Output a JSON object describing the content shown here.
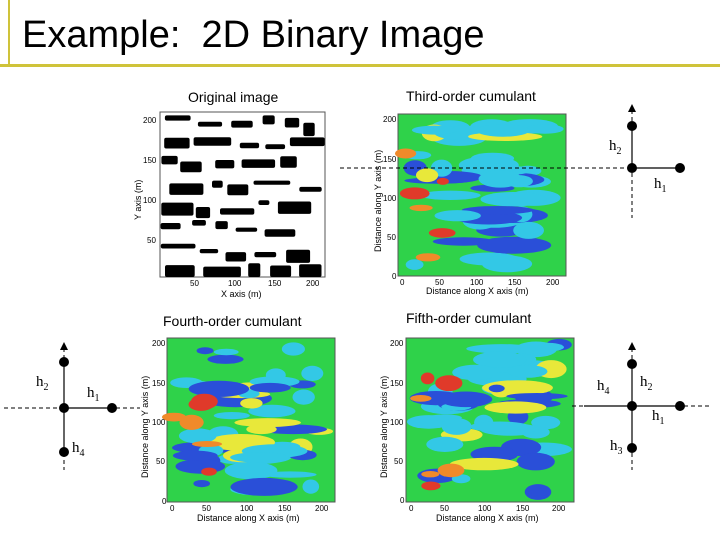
{
  "slide": {
    "title": "Example:  2D Binary Image"
  },
  "panels": {
    "original": {
      "caption": "Original image",
      "xlabel": "X axis (m)",
      "ylabel": "Y axis (m)",
      "xticks": [
        "50",
        "100",
        "150",
        "200"
      ],
      "yticks": [
        "200",
        "150",
        "100",
        "50"
      ]
    },
    "third": {
      "caption": "Third-order cumulant",
      "xlabel": "Distance along X axis (m)",
      "ylabel": "Distance along Y axis (m)",
      "xticks": [
        "0",
        "50",
        "100",
        "150",
        "200"
      ],
      "yticks": [
        "200",
        "150",
        "100",
        "50",
        "0"
      ]
    },
    "fourth": {
      "caption": "Fourth-order cumulant",
      "xlabel": "Distance along X axis (m)",
      "ylabel": "Distance along Y axis (m)",
      "xticks": [
        "0",
        "50",
        "100",
        "150",
        "200"
      ],
      "yticks": [
        "200",
        "150",
        "100",
        "50",
        "0"
      ]
    },
    "fifth": {
      "caption": "Fifth-order cumulant",
      "xlabel": "Distance along X axis (m)",
      "ylabel": "Distance along Y axis (m)",
      "xticks": [
        "0",
        "50",
        "100",
        "150",
        "200"
      ],
      "yticks": [
        "200",
        "150",
        "100",
        "50",
        "0"
      ]
    }
  },
  "templates": {
    "third": {
      "h1": "h",
      "h1_sub": "1",
      "h2": "h",
      "h2_sub": "2"
    },
    "fourth": {
      "h1": "h",
      "h1_sub": "1",
      "h2": "h",
      "h2_sub": "2",
      "h4": "h",
      "h4_sub": "4"
    },
    "fifth": {
      "h1": "h",
      "h1_sub": "1",
      "h2": "h",
      "h2_sub": "2",
      "h3": "h",
      "h3_sub": "3",
      "h4": "h",
      "h4_sub": "4"
    }
  },
  "colors": {
    "accent_rule": "#cfc33a",
    "map_green": "#2fd24a",
    "map_cyan": "#33c8e6",
    "map_blue": "#2a4fd8",
    "map_yellow": "#e8e83a",
    "map_orange": "#f08a2a",
    "map_red": "#e03a2a"
  }
}
